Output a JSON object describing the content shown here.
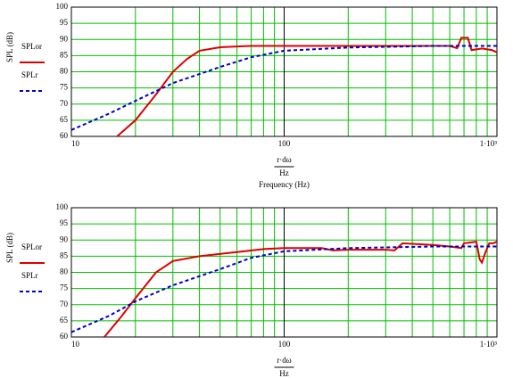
{
  "chart_data": [
    {
      "type": "line",
      "y_label": "SPL (dB)",
      "x_label_numerator": "r·dω",
      "x_label_denominator": "Hz",
      "x_label": "Frequency (Hz)",
      "xscale": "log",
      "xlim": [
        10,
        1000
      ],
      "xticks": [
        10,
        100,
        {
          "value": 1000,
          "label": "1·10³"
        }
      ],
      "xminorticks": [
        20,
        30,
        40,
        50,
        60,
        70,
        80,
        90,
        200,
        300,
        400,
        500,
        600,
        700,
        800,
        900
      ],
      "ylim": [
        60,
        100
      ],
      "yticks": [
        60,
        65,
        70,
        75,
        80,
        85,
        90,
        95,
        100
      ],
      "grid": true,
      "grid_color": "#00c000",
      "series": [
        {
          "name": "SPLor",
          "color": "#e00000",
          "dash": false,
          "x": [
            16.4,
            20,
            25,
            30,
            35,
            40,
            50,
            70,
            100,
            200,
            400,
            600,
            650,
            680,
            730,
            760,
            850,
            950,
            1000
          ],
          "values": [
            60,
            65,
            73,
            80,
            84,
            86.5,
            87.6,
            88,
            88,
            88,
            88,
            88,
            87.3,
            90.5,
            90.5,
            86.7,
            87.2,
            86.7,
            86
          ]
        },
        {
          "name": "SPLr",
          "color": "#0000c8",
          "dash": true,
          "x": [
            10,
            15,
            20,
            30,
            50,
            70,
            100,
            200,
            500,
            1000
          ],
          "values": [
            62,
            67,
            71,
            76.5,
            81.5,
            84.5,
            86.5,
            87.5,
            88,
            88
          ]
        }
      ]
    },
    {
      "type": "line",
      "y_label": "SPL (dB)",
      "x_label_numerator": "r·dω",
      "x_label_denominator": "Hz",
      "xscale": "log",
      "xlim": [
        10,
        1000
      ],
      "xticks": [
        10,
        100,
        {
          "value": 1000,
          "label": "1·10³"
        }
      ],
      "xminorticks": [
        20,
        30,
        40,
        50,
        60,
        70,
        80,
        90,
        200,
        300,
        400,
        500,
        600,
        700,
        800,
        900
      ],
      "ylim": [
        60,
        100
      ],
      "yticks": [
        60,
        65,
        70,
        75,
        80,
        85,
        90,
        95,
        100
      ],
      "grid": true,
      "grid_color": "#00c000",
      "series": [
        {
          "name": "SPLor",
          "color": "#e00000",
          "dash": false,
          "x": [
            14.3,
            17,
            20,
            25,
            30,
            40,
            60,
            80,
            100,
            150,
            170,
            200,
            250,
            300,
            330,
            360,
            500,
            600,
            680,
            700,
            800,
            830,
            850,
            880,
            920,
            960,
            1000
          ],
          "values": [
            60,
            66,
            72,
            80,
            83.5,
            85,
            86.3,
            87.2,
            87.5,
            87.5,
            86.8,
            87,
            87,
            87,
            86.8,
            89,
            88.5,
            88,
            87.5,
            89,
            89.5,
            84,
            83,
            86,
            89,
            89,
            89.5
          ]
        },
        {
          "name": "SPLr",
          "color": "#0000c8",
          "dash": true,
          "x": [
            10,
            15,
            20,
            30,
            50,
            70,
            100,
            200,
            500,
            1000
          ],
          "values": [
            61.5,
            66.5,
            71,
            76,
            81,
            84.5,
            86.5,
            87.5,
            88,
            88
          ]
        }
      ]
    }
  ]
}
